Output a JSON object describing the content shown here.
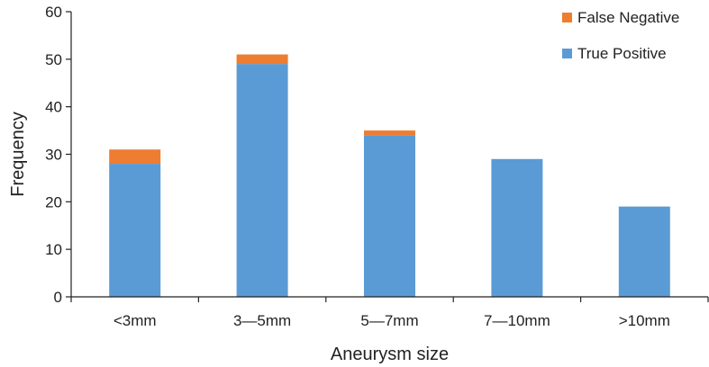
{
  "chart_data": {
    "type": "bar",
    "stacked": true,
    "categories": [
      "<3mm",
      "3—5mm",
      "5—7mm",
      "7—10mm",
      ">10mm"
    ],
    "series": [
      {
        "name": "True Positive",
        "values": [
          28,
          49,
          34,
          29,
          19
        ],
        "color": "#5b9bd5"
      },
      {
        "name": "False Negative",
        "values": [
          3,
          2,
          1,
          0,
          0
        ],
        "color": "#ed7d31"
      }
    ],
    "title": "",
    "xlabel": "Aneurysm size",
    "ylabel": "Frequency",
    "ylim": [
      0,
      60
    ],
    "yticks": [
      "0",
      "10",
      "20",
      "30",
      "40",
      "50",
      "60"
    ],
    "grid": false,
    "legend_position": "top-right",
    "legend_order": [
      "False Negative",
      "True Positive"
    ]
  }
}
